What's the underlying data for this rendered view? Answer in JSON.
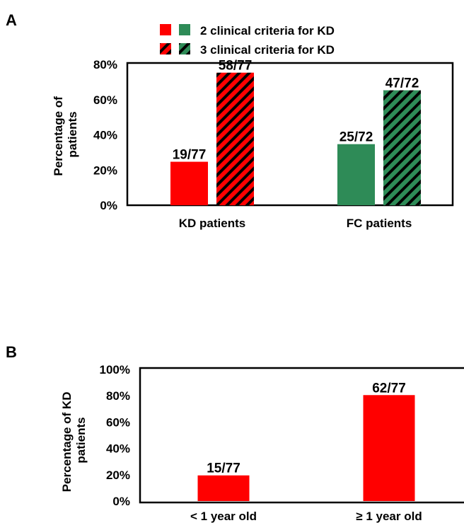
{
  "panel_labels": {
    "a": "A",
    "b": "B"
  },
  "colors": {
    "kd_red": "#ff0000",
    "fc_green": "#2e8b57",
    "hatch_stripe": "#000000",
    "frame": "#000000"
  },
  "legend": {
    "two_criteria": "2 clinical criteria for KD",
    "three_criteria": "3 clinical criteria for KD"
  },
  "chart_data": [
    {
      "type": "bar",
      "ylabel": "Percentage of patients",
      "ylim": [
        0,
        80
      ],
      "yticks": [
        "0%",
        "20%",
        "40%",
        "60%",
        "80%"
      ],
      "categories": [
        "KD patients",
        "FC patients"
      ],
      "series": [
        {
          "name": "2 clinical criteria for KD",
          "values": [
            24.7,
            34.7
          ],
          "labels": [
            "19/77",
            "25/72"
          ]
        },
        {
          "name": "3 clinical criteria for KD",
          "values": [
            75.3,
            65.3
          ],
          "labels": [
            "58/77",
            "47/72"
          ]
        }
      ],
      "legend_position": "top"
    },
    {
      "type": "bar",
      "ylabel": "Percentage of KD patients",
      "ylim": [
        0,
        100
      ],
      "yticks": [
        "0%",
        "20%",
        "40%",
        "60%",
        "80%",
        "100%"
      ],
      "categories": [
        "< 1 year old",
        "≥ 1 year old"
      ],
      "series": [
        {
          "values": [
            19.5,
            80.5
          ],
          "labels": [
            "15/77",
            "62/77"
          ]
        }
      ]
    }
  ]
}
